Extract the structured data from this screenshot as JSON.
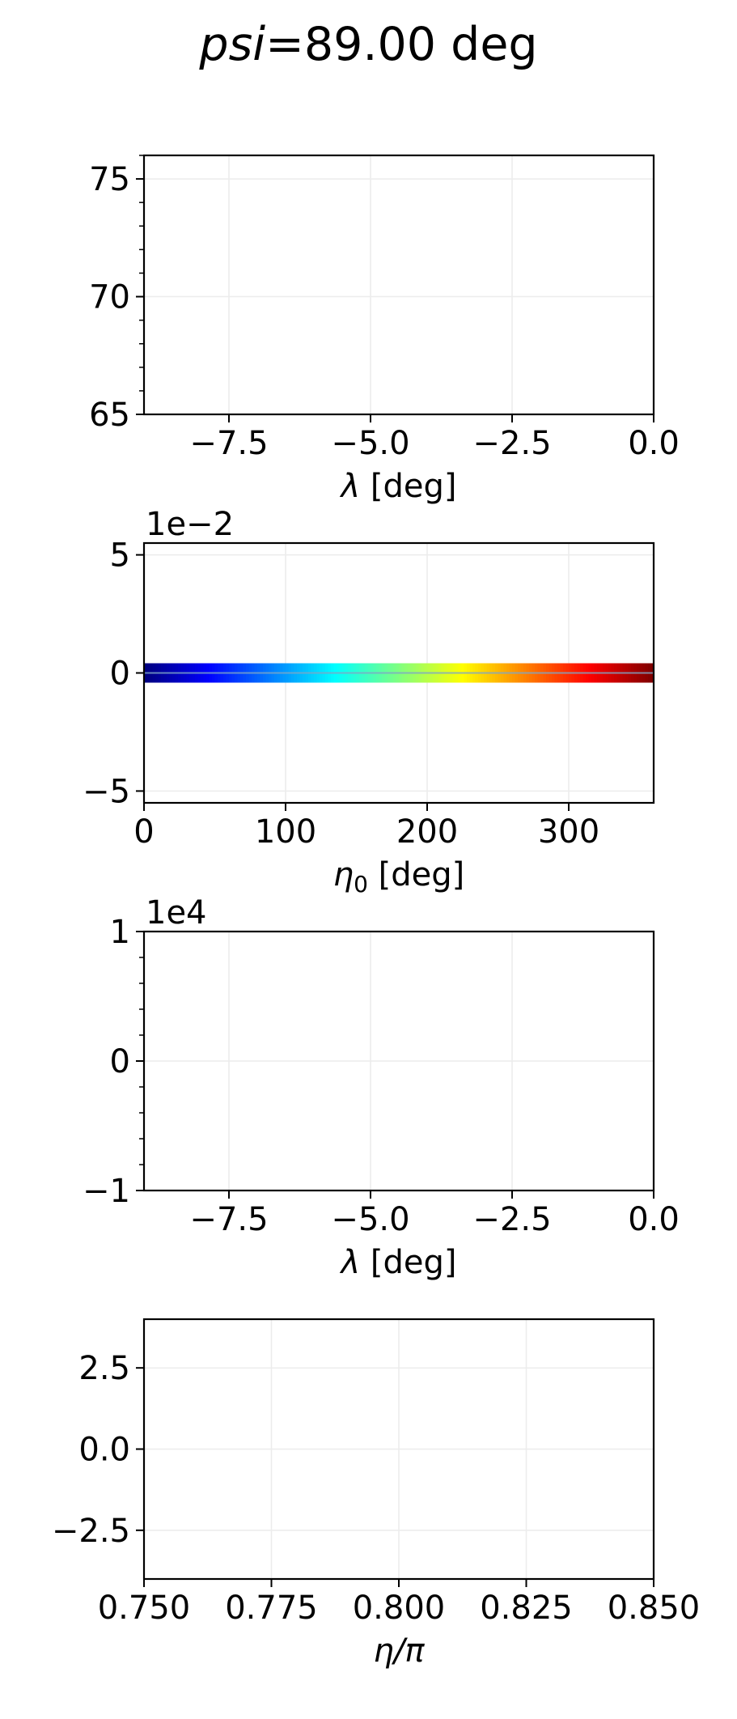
{
  "figure_title": {
    "symbol": "psi",
    "rest": "=89.00 deg"
  },
  "chart_data": [
    {
      "type": "line",
      "title": "",
      "xlabel": "λ [deg]",
      "ylabel": "",
      "xlim": [
        -9,
        0
      ],
      "ylim": [
        65,
        76
      ],
      "xticks": [
        -7.5,
        -5.0,
        -2.5,
        0.0
      ],
      "xtick_labels": [
        "−7.5",
        "−5.0",
        "−2.5",
        "0.0"
      ],
      "yticks": [
        65,
        70,
        75
      ],
      "ytick_labels": [
        "65",
        "70",
        "75"
      ],
      "y_minor_step": 1,
      "offset_text": "",
      "grid": true,
      "series": []
    },
    {
      "type": "scatter",
      "title": "",
      "xlabel": "η0 [deg]",
      "ylabel": "",
      "xlim": [
        0,
        360
      ],
      "ylim": [
        -5.5,
        5.5
      ],
      "xticks": [
        0,
        100,
        200,
        300
      ],
      "xtick_labels": [
        "0",
        "100",
        "200",
        "300"
      ],
      "yticks": [
        -5,
        0,
        5
      ],
      "ytick_labels": [
        "−5",
        "0",
        "5"
      ],
      "offset_text": "1e−2",
      "grid": true,
      "colormap": "jet",
      "series": [
        {
          "x_start": 0,
          "x_end": 360,
          "y": 0,
          "color_by": "x"
        }
      ]
    },
    {
      "type": "line",
      "title": "",
      "xlabel": "λ [deg]",
      "ylabel": "",
      "xlim": [
        -9,
        0
      ],
      "ylim": [
        -1,
        1
      ],
      "xticks": [
        -7.5,
        -5.0,
        -2.5,
        0.0
      ],
      "xtick_labels": [
        "−7.5",
        "−5.0",
        "−2.5",
        "0.0"
      ],
      "yticks": [
        -1,
        0,
        1
      ],
      "ytick_labels": [
        "−1",
        "0",
        "1"
      ],
      "y_minor_step": 0.2,
      "offset_text": "1e4",
      "grid": true,
      "series": []
    },
    {
      "type": "line",
      "title": "",
      "xlabel": "η/π",
      "ylabel": "",
      "xlim": [
        0.75,
        0.85
      ],
      "ylim": [
        -4,
        4
      ],
      "xticks": [
        0.75,
        0.775,
        0.8,
        0.825,
        0.85
      ],
      "xtick_labels": [
        "0.750",
        "0.775",
        "0.800",
        "0.825",
        "0.850"
      ],
      "yticks": [
        -2.5,
        0.0,
        2.5
      ],
      "ytick_labels": [
        "−2.5",
        "0.0",
        "2.5"
      ],
      "offset_text": "",
      "grid": true,
      "series": []
    }
  ]
}
